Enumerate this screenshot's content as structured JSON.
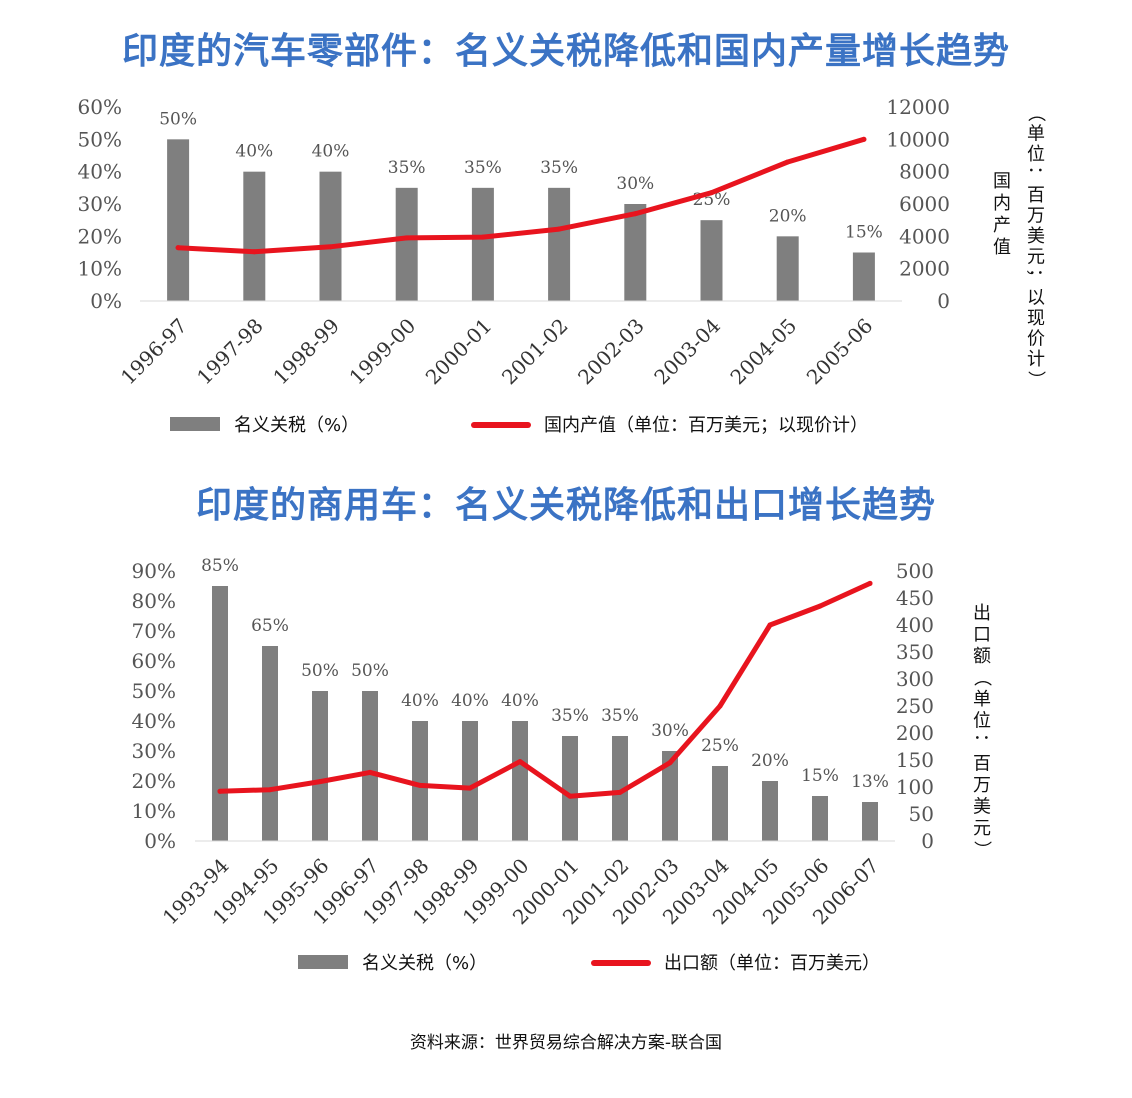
{
  "charts": [
    {
      "title": "印度的汽车零部件：名义关税降低和国内产量增长趋势",
      "chart_data": {
        "type": "bar",
        "categories": [
          "1996-97",
          "1997-98",
          "1998-99",
          "1999-00",
          "2000-01",
          "2001-02",
          "2002-03",
          "2003-04",
          "2004-05",
          "2005-06"
        ],
        "series": [
          {
            "name": "名义关税（%）",
            "type": "bar",
            "axis": "left",
            "unit": "%",
            "values": [
              50,
              40,
              40,
              35,
              35,
              35,
              30,
              25,
              20,
              15
            ],
            "color": "#7f7f7f"
          },
          {
            "name": "国内产值（单位：百万美元；以现价计）",
            "type": "line",
            "axis": "right",
            "values": [
              3300,
              3050,
              3350,
              3900,
              3950,
              4450,
              5400,
              6700,
              8600,
              10000
            ],
            "color": "#e8141e"
          }
        ],
        "ylim_left": [
          0,
          60
        ],
        "yticks_left": [
          "0%",
          "10%",
          "20%",
          "30%",
          "40%",
          "50%",
          "60%"
        ],
        "ylim_right": [
          0,
          12000
        ],
        "yticks_right": [
          "0",
          "2000",
          "4000",
          "6000",
          "8000",
          "10000",
          "12000"
        ],
        "ylabel_right": "国内产值",
        "ylabel_right_note": "（单位：百万美元；以现价计）",
        "legend": "bottom"
      }
    },
    {
      "title": "印度的商用车：名义关税降低和出口增长趋势",
      "chart_data": {
        "type": "bar",
        "categories": [
          "1993-94",
          "1994-95",
          "1995-96",
          "1996-97",
          "1997-98",
          "1998-99",
          "1999-00",
          "2000-01",
          "2001-02",
          "2002-03",
          "2003-04",
          "2004-05",
          "2005-06",
          "2006-07"
        ],
        "series": [
          {
            "name": "名义关税（%）",
            "type": "bar",
            "axis": "left",
            "unit": "%",
            "values": [
              85,
              65,
              50,
              50,
              40,
              40,
              40,
              35,
              35,
              30,
              25,
              20,
              15,
              13
            ],
            "color": "#7f7f7f"
          },
          {
            "name": "出口额（单位：百万美元）",
            "type": "line",
            "axis": "right",
            "values": [
              92,
              95,
              110,
              127,
              103,
              98,
              147,
              83,
              90,
              145,
              250,
              400,
              435,
              477
            ],
            "color": "#e8141e"
          }
        ],
        "ylim_left": [
          0,
          90
        ],
        "yticks_left": [
          "0%",
          "10%",
          "20%",
          "30%",
          "40%",
          "50%",
          "60%",
          "70%",
          "80%",
          "90%"
        ],
        "ylim_right": [
          0,
          500
        ],
        "yticks_right": [
          "0",
          "50",
          "100",
          "150",
          "200",
          "250",
          "300",
          "350",
          "400",
          "450",
          "500"
        ],
        "ylabel_right": "出口额（单位：百万美元）",
        "legend": "bottom"
      }
    }
  ],
  "source": "资料来源：世界贸易综合解决方案-联合国"
}
